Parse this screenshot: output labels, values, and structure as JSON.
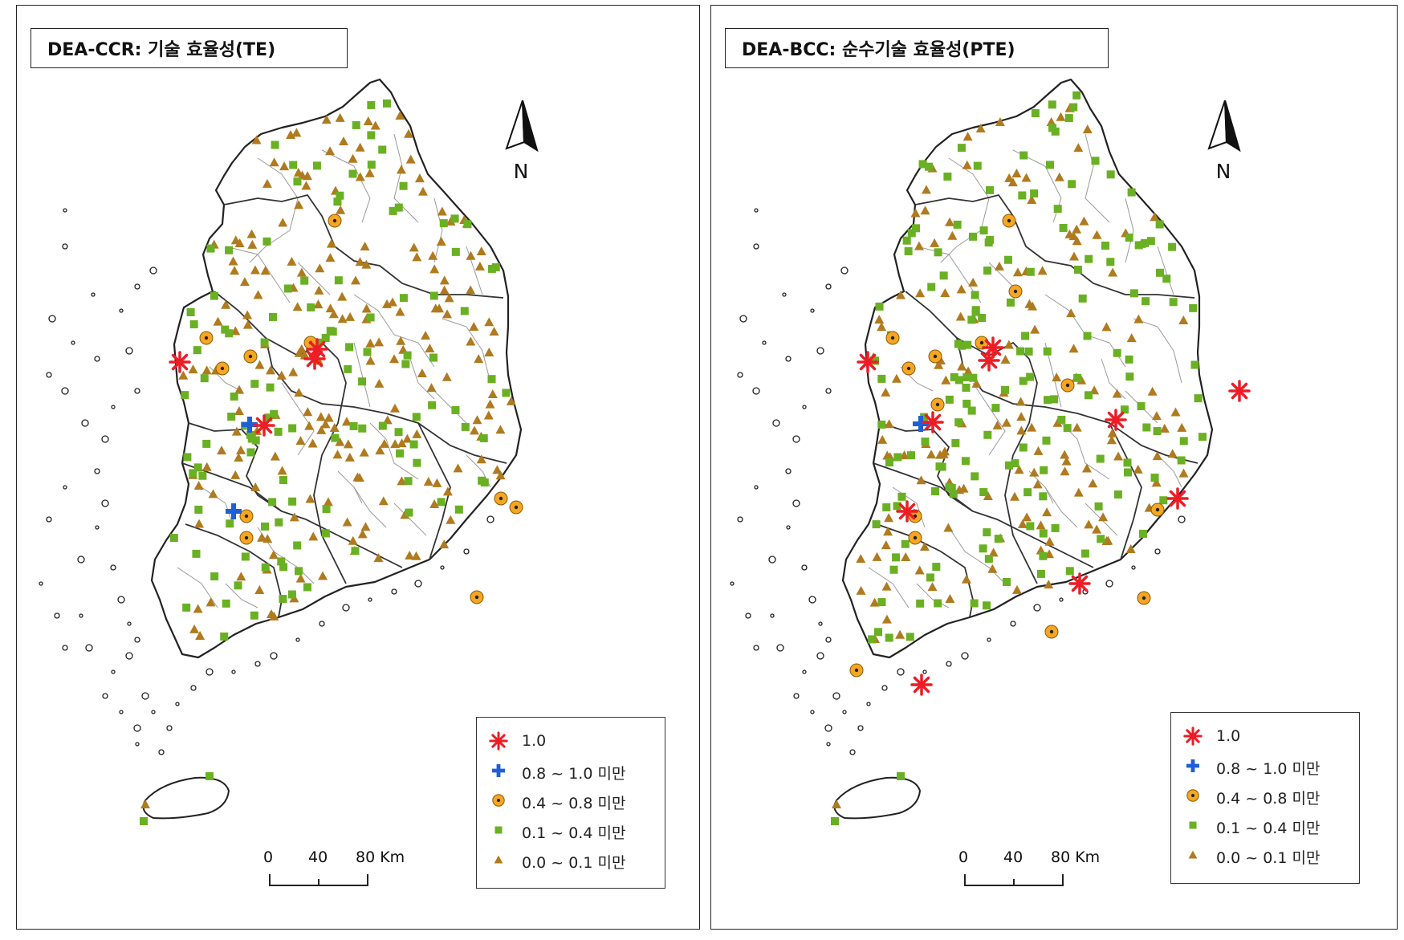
{
  "panels": [
    {
      "title": "DEA-CCR: 기술 효율성(TE)",
      "markers": {
        "eff_1_0": [
          [
            203,
            444
          ],
          [
            374,
            428
          ],
          [
            371,
            440
          ],
          [
            308,
            523
          ]
        ],
        "eff_08_10": [
          [
            290,
            522
          ],
          [
            270,
            630
          ]
        ],
        "eff_04_08": [
          [
            236,
            414
          ],
          [
            256,
            452
          ],
          [
            291,
            437
          ],
          [
            366,
            420
          ],
          [
            396,
            268
          ],
          [
            603,
            614
          ],
          [
            622,
            625
          ],
          [
            286,
            636
          ],
          [
            286,
            663
          ],
          [
            573,
            737
          ]
        ]
      }
    },
    {
      "title": "DEA-BCC: 순수기술 효율성(PTE)",
      "markers": {
        "eff_1_0": [
          [
            199,
            444
          ],
          [
            355,
            426
          ],
          [
            350,
            442
          ],
          [
            280,
            519
          ],
          [
            508,
            516
          ],
          [
            662,
            480
          ],
          [
            585,
            614
          ],
          [
            248,
            630
          ],
          [
            463,
            720
          ],
          [
            266,
            846
          ]
        ],
        "eff_08_10": [
          [
            265,
            521
          ]
        ],
        "eff_04_08": [
          [
            230,
            414
          ],
          [
            250,
            452
          ],
          [
            283,
            437
          ],
          [
            341,
            420
          ],
          [
            375,
            268
          ],
          [
            383,
            356
          ],
          [
            448,
            473
          ],
          [
            286,
            497
          ],
          [
            560,
            628
          ],
          [
            258,
            636
          ],
          [
            258,
            663
          ],
          [
            543,
            738
          ],
          [
            428,
            780
          ],
          [
            185,
            828
          ]
        ]
      }
    }
  ],
  "north_label": "N",
  "scale": {
    "ticks": [
      "0",
      "40",
      "80 Km"
    ]
  },
  "legend": [
    {
      "key": "eff_1_0",
      "label": "1.0",
      "color": "#ee1c25",
      "icon": "red-asterisk-icon"
    },
    {
      "key": "eff_08_10",
      "label": "0.8 ~ 1.0 미만",
      "color": "#1f5fd6",
      "icon": "blue-cross-icon"
    },
    {
      "key": "eff_04_08",
      "label": "0.4 ~ 0.8 미만",
      "color": "#f5a623",
      "icon": "orange-dotted-circle-icon"
    },
    {
      "key": "eff_01_04",
      "label": "0.1 ~ 0.4 미만",
      "color": "#6ab023",
      "icon": "green-square-icon"
    },
    {
      "key": "eff_00_01",
      "label": "0.0 ~ 0.1 미만",
      "color": "#b07a1e",
      "icon": "brown-triangle-icon"
    }
  ]
}
